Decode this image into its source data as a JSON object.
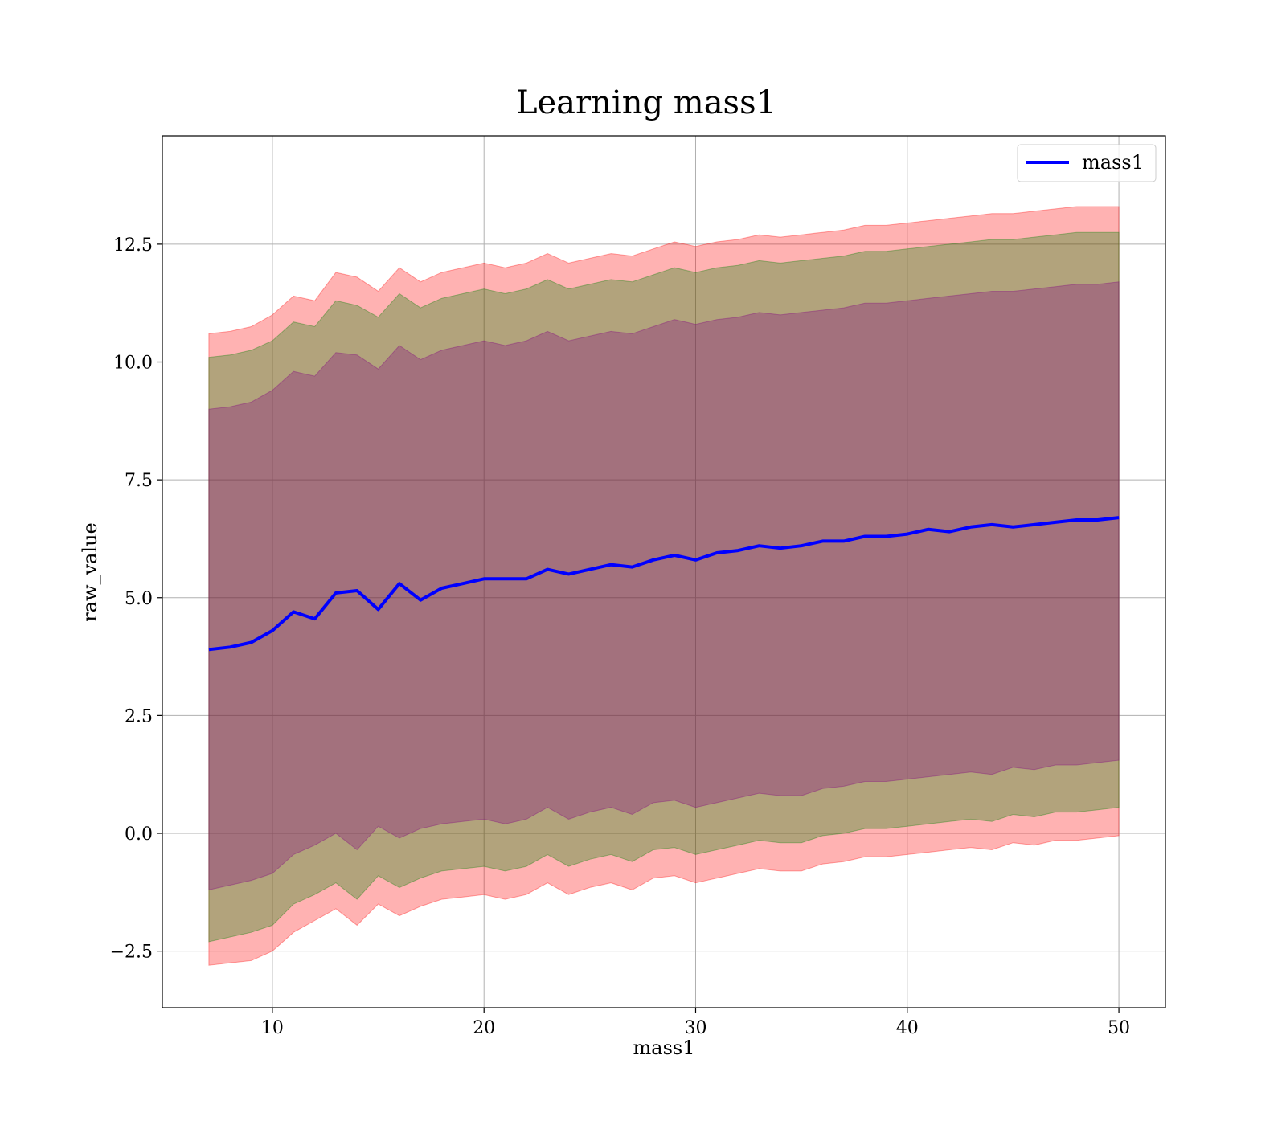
{
  "chart_data": {
    "type": "area",
    "title": "Learning mass1",
    "xlabel": "mass1",
    "ylabel": "raw_value",
    "xlim": [
      4.8,
      52.2
    ],
    "ylim": [
      -3.7,
      14.8
    ],
    "x_ticks": [
      10,
      20,
      30,
      40,
      50
    ],
    "y_ticks": [
      -2.5,
      0.0,
      2.5,
      5.0,
      7.5,
      10.0,
      12.5
    ],
    "x_tick_labels": [
      "10",
      "20",
      "30",
      "40",
      "50"
    ],
    "y_tick_labels": [
      "−2.5",
      "0.0",
      "2.5",
      "5.0",
      "7.5",
      "10.0",
      "12.5"
    ],
    "grid": true,
    "legend": {
      "position": "top-right",
      "entries": [
        "mass1"
      ]
    },
    "x": [
      7.0,
      8.0,
      9.0,
      10.0,
      11.0,
      12.0,
      13.0,
      14.0,
      15.0,
      16.0,
      17.0,
      18.0,
      19.0,
      20.0,
      21.0,
      22.0,
      23.0,
      24.0,
      25.0,
      26.0,
      27.0,
      28.0,
      29.0,
      30.0,
      31.0,
      32.0,
      33.0,
      34.0,
      35.0,
      36.0,
      37.0,
      38.0,
      39.0,
      40.0,
      41.0,
      42.0,
      43.0,
      44.0,
      45.0,
      46.0,
      47.0,
      48.0,
      49.0,
      50.0
    ],
    "series": [
      {
        "name": "mass1",
        "color": "#0000ff",
        "values": [
          3.9,
          3.95,
          4.05,
          4.3,
          4.7,
          4.55,
          5.1,
          5.15,
          4.75,
          5.3,
          4.95,
          5.2,
          5.3,
          5.4,
          5.4,
          5.4,
          5.6,
          5.5,
          5.6,
          5.7,
          5.65,
          5.8,
          5.9,
          5.8,
          5.95,
          6.0,
          6.1,
          6.05,
          6.1,
          6.2,
          6.2,
          6.3,
          6.3,
          6.35,
          6.45,
          6.4,
          6.5,
          6.55,
          6.5,
          6.55,
          6.6,
          6.65,
          6.65,
          6.7
        ]
      }
    ],
    "bands": [
      {
        "color": "#ff0000",
        "opacity": 0.3,
        "lower": [
          -2.8,
          -2.75,
          -2.7,
          -2.5,
          -2.1,
          -1.85,
          -1.6,
          -1.95,
          -1.5,
          -1.75,
          -1.55,
          -1.4,
          -1.35,
          -1.3,
          -1.4,
          -1.3,
          -1.05,
          -1.3,
          -1.15,
          -1.05,
          -1.2,
          -0.95,
          -0.9,
          -1.05,
          -0.95,
          -0.85,
          -0.75,
          -0.8,
          -0.8,
          -0.65,
          -0.6,
          -0.5,
          -0.5,
          -0.45,
          -0.4,
          -0.35,
          -0.3,
          -0.35,
          -0.2,
          -0.25,
          -0.15,
          -0.15,
          -0.1,
          -0.05
        ],
        "upper": [
          10.6,
          10.65,
          10.75,
          11.0,
          11.4,
          11.3,
          11.9,
          11.8,
          11.5,
          12.0,
          11.7,
          11.9,
          12.0,
          12.1,
          12.0,
          12.1,
          12.3,
          12.1,
          12.2,
          12.3,
          12.25,
          12.4,
          12.55,
          12.45,
          12.55,
          12.6,
          12.7,
          12.65,
          12.7,
          12.75,
          12.8,
          12.9,
          12.9,
          12.95,
          13.0,
          13.05,
          13.1,
          13.15,
          13.15,
          13.2,
          13.25,
          13.3,
          13.3,
          13.3
        ]
      },
      {
        "color": "#008000",
        "opacity": 0.3,
        "lower": [
          -2.3,
          -2.2,
          -2.1,
          -1.95,
          -1.5,
          -1.3,
          -1.05,
          -1.4,
          -0.9,
          -1.15,
          -0.95,
          -0.8,
          -0.75,
          -0.7,
          -0.8,
          -0.7,
          -0.45,
          -0.7,
          -0.55,
          -0.45,
          -0.6,
          -0.35,
          -0.3,
          -0.45,
          -0.35,
          -0.25,
          -0.15,
          -0.2,
          -0.2,
          -0.05,
          0.0,
          0.1,
          0.1,
          0.15,
          0.2,
          0.25,
          0.3,
          0.25,
          0.4,
          0.35,
          0.45,
          0.45,
          0.5,
          0.55
        ],
        "upper": [
          10.1,
          10.15,
          10.25,
          10.45,
          10.85,
          10.75,
          11.3,
          11.2,
          10.95,
          11.45,
          11.15,
          11.35,
          11.45,
          11.55,
          11.45,
          11.55,
          11.75,
          11.55,
          11.65,
          11.75,
          11.7,
          11.85,
          12.0,
          11.9,
          12.0,
          12.05,
          12.15,
          12.1,
          12.15,
          12.2,
          12.25,
          12.35,
          12.35,
          12.4,
          12.45,
          12.5,
          12.55,
          12.6,
          12.6,
          12.65,
          12.7,
          12.75,
          12.75,
          12.75
        ]
      },
      {
        "color": "#800080",
        "opacity": 0.3,
        "lower": [
          -1.2,
          -1.1,
          -1.0,
          -0.85,
          -0.45,
          -0.25,
          0.0,
          -0.35,
          0.15,
          -0.1,
          0.1,
          0.2,
          0.25,
          0.3,
          0.2,
          0.3,
          0.55,
          0.3,
          0.45,
          0.55,
          0.4,
          0.65,
          0.7,
          0.55,
          0.65,
          0.75,
          0.85,
          0.8,
          0.8,
          0.95,
          1.0,
          1.1,
          1.1,
          1.15,
          1.2,
          1.25,
          1.3,
          1.25,
          1.4,
          1.35,
          1.45,
          1.45,
          1.5,
          1.55
        ],
        "upper": [
          9.0,
          9.05,
          9.15,
          9.4,
          9.8,
          9.7,
          10.2,
          10.15,
          9.85,
          10.35,
          10.05,
          10.25,
          10.35,
          10.45,
          10.35,
          10.45,
          10.65,
          10.45,
          10.55,
          10.65,
          10.6,
          10.75,
          10.9,
          10.8,
          10.9,
          10.95,
          11.05,
          11.0,
          11.05,
          11.1,
          11.15,
          11.25,
          11.25,
          11.3,
          11.35,
          11.4,
          11.45,
          11.5,
          11.5,
          11.55,
          11.6,
          11.65,
          11.65,
          11.7
        ]
      }
    ]
  }
}
